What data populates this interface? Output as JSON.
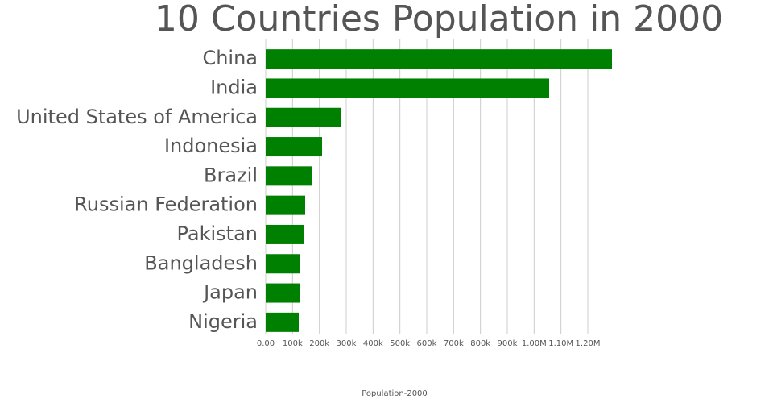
{
  "chart_data": {
    "type": "hbar",
    "title": "10 Countries Population in 2000",
    "x_label": "Population-2000",
    "categories": [
      "China",
      "India",
      "United States of America",
      "Indonesia",
      "Brazil",
      "Russian Federation",
      "Pakistan",
      "Bangladesh",
      "Japan",
      "Nigeria"
    ],
    "values": [
      1290000,
      1056000,
      282000,
      210000,
      174000,
      147000,
      141000,
      129000,
      127000,
      123000
    ],
    "color": "#008000",
    "xlim": [
      0,
      1300000
    ],
    "xticks": [
      {
        "value": 0,
        "label": "0.00"
      },
      {
        "value": 100000,
        "label": "100k"
      },
      {
        "value": 200000,
        "label": "200k"
      },
      {
        "value": 300000,
        "label": "300k"
      },
      {
        "value": 400000,
        "label": "400k"
      },
      {
        "value": 500000,
        "label": "500k"
      },
      {
        "value": 600000,
        "label": "600k"
      },
      {
        "value": 700000,
        "label": "700k"
      },
      {
        "value": 800000,
        "label": "800k"
      },
      {
        "value": 900000,
        "label": "900k"
      },
      {
        "value": 1000000,
        "label": "1.00M"
      },
      {
        "value": 1100000,
        "label": "1.10M"
      },
      {
        "value": 1200000,
        "label": "1.20M"
      }
    ],
    "grid": true
  }
}
